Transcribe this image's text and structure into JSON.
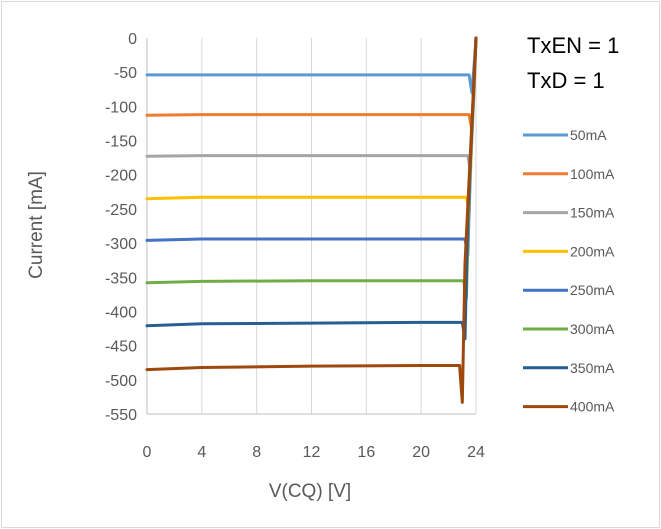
{
  "chart_data": {
    "type": "line",
    "title": "",
    "xlabel": "V(CQ) [V]",
    "ylabel": "Current [mA]",
    "xlim": [
      0,
      24
    ],
    "ylim": [
      -550,
      0
    ],
    "xticks": [
      0,
      4,
      8,
      12,
      16,
      20,
      24
    ],
    "yticks": [
      0,
      -50,
      -100,
      -150,
      -200,
      -250,
      -300,
      -350,
      -400,
      -450,
      -500,
      -550
    ],
    "grid": {
      "horizontal": false,
      "vertical": true
    },
    "legend_position": "right",
    "annotations": [
      "TxEN = 1",
      "TxD = 1"
    ],
    "series": [
      {
        "name": "50mA",
        "color": "#5B9BD5",
        "x": [
          0,
          4,
          12,
          20,
          23.5,
          23.7,
          23.9,
          24
        ],
        "y": [
          -54,
          -54,
          -54,
          -54,
          -54,
          -80,
          -30,
          0
        ]
      },
      {
        "name": "100mA",
        "color": "#ED7D31",
        "x": [
          0,
          4,
          12,
          20,
          23.5,
          23.7,
          23.9,
          24
        ],
        "y": [
          -113,
          -112,
          -112,
          -112,
          -112,
          -135,
          -60,
          0
        ]
      },
      {
        "name": "150mA",
        "color": "#A5A5A5",
        "x": [
          0,
          4,
          12,
          20,
          23.4,
          23.6,
          23.8,
          24
        ],
        "y": [
          -173,
          -172,
          -172,
          -172,
          -172,
          -195,
          -100,
          0
        ]
      },
      {
        "name": "200mA",
        "color": "#FFC000",
        "x": [
          0,
          4,
          12,
          20,
          23.3,
          23.5,
          23.7,
          24
        ],
        "y": [
          -235,
          -233,
          -233,
          -233,
          -233,
          -255,
          -140,
          0
        ]
      },
      {
        "name": "250mA",
        "color": "#4472C4",
        "x": [
          0,
          4,
          12,
          20,
          23.2,
          23.4,
          23.6,
          24
        ],
        "y": [
          -296,
          -294,
          -294,
          -294,
          -294,
          -318,
          -180,
          0
        ]
      },
      {
        "name": "300mA",
        "color": "#70AD47",
        "x": [
          0,
          4,
          12,
          20,
          23.1,
          23.3,
          23.5,
          24
        ],
        "y": [
          -358,
          -356,
          -355,
          -355,
          -355,
          -380,
          -220,
          0
        ]
      },
      {
        "name": "350mA",
        "color": "#255E91",
        "x": [
          0,
          4,
          12,
          20,
          23.0,
          23.2,
          23.4,
          24
        ],
        "y": [
          -421,
          -418,
          -417,
          -416,
          -416,
          -440,
          -260,
          0
        ]
      },
      {
        "name": "400mA",
        "color": "#9E480E",
        "x": [
          0,
          4,
          12,
          20,
          22.8,
          23.0,
          23.2,
          24
        ],
        "y": [
          -485,
          -482,
          -480,
          -479,
          -479,
          -533,
          -330,
          0
        ]
      }
    ]
  }
}
